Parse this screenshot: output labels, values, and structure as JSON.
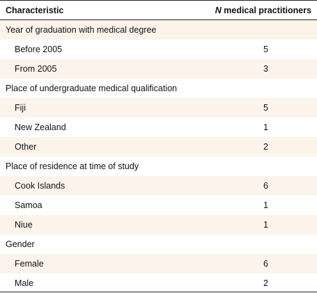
{
  "header": {
    "characteristic": "Characteristic",
    "n_italic": "N",
    "n_rest": " medical practitioners"
  },
  "rows": [
    {
      "type": "group",
      "label": "Year of graduation with medical degree",
      "value": ""
    },
    {
      "type": "item",
      "label": "Before 2005",
      "value": "5"
    },
    {
      "type": "item",
      "label": "From 2005",
      "value": "3"
    },
    {
      "type": "group",
      "label": "Place of undergraduate medical qualification",
      "value": ""
    },
    {
      "type": "item",
      "label": "Fiji",
      "value": "5"
    },
    {
      "type": "item",
      "label": "New Zealand",
      "value": "1"
    },
    {
      "type": "item",
      "label": "Other",
      "value": "2"
    },
    {
      "type": "group",
      "label": "Place of residence at time of study",
      "value": ""
    },
    {
      "type": "item",
      "label": "Cook Islands",
      "value": "6"
    },
    {
      "type": "item",
      "label": "Samoa",
      "value": "1"
    },
    {
      "type": "item",
      "label": "Niue",
      "value": "1"
    },
    {
      "type": "group",
      "label": "Gender",
      "value": ""
    },
    {
      "type": "item",
      "label": "Female",
      "value": "6"
    },
    {
      "type": "item",
      "label": "Male",
      "value": "2"
    }
  ],
  "colors": {
    "shaded_row": "#fcf4ea",
    "rule": "#222222"
  }
}
